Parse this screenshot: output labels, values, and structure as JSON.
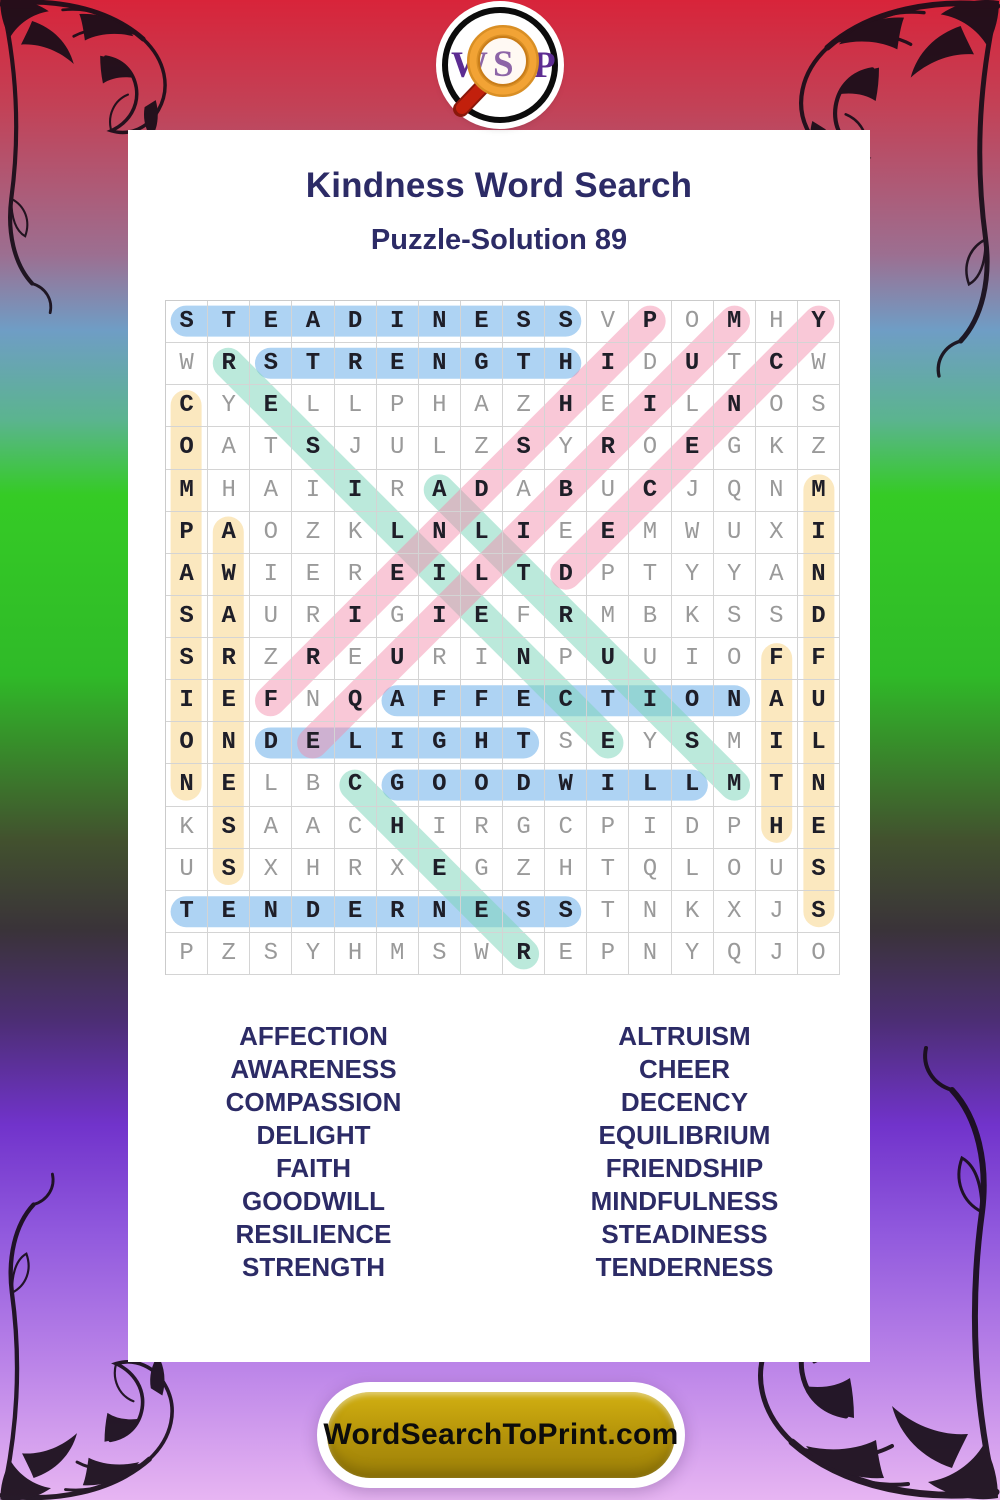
{
  "logo": {
    "letters": [
      "W",
      "S",
      "P"
    ]
  },
  "header": {
    "title": "Kindness Word Search",
    "subtitle": "Puzzle-Solution 89"
  },
  "grid": {
    "size": 16,
    "rows": [
      "STEADINESSVPOMHY",
      "WRSTRENGTHIDUTCW",
      "CYELLPHAZHEILNOS",
      "OATSJULZSYROEGKZ",
      "MHAIIRADABUCJQNM",
      "PAOZKLNLIEEMWUXI",
      "AWIEREILTDPTYYAN",
      "SAURIGIEFRMBKSSD",
      "SRZREURINPUUIOFF",
      "IEFNQAFFECTIONAU",
      "ONDELIGHTSEYSMIL",
      "NELBCGOODWILLMTN",
      "KSAACHIRGCPIDPHE",
      "USXHRXEGZHTQLOUS",
      "TENDERNESSTNKXJS",
      "PZSYHMSWREPNYQJO"
    ]
  },
  "solutions": [
    {
      "word": "STEADINESS",
      "r1": 1,
      "c1": 1,
      "r2": 1,
      "c2": 10,
      "color": "blue"
    },
    {
      "word": "STRENGTH",
      "r1": 2,
      "c1": 3,
      "r2": 2,
      "c2": 10,
      "color": "blue"
    },
    {
      "word": "AFFECTION",
      "r1": 10,
      "c1": 6,
      "r2": 10,
      "c2": 14,
      "color": "blue"
    },
    {
      "word": "DELIGHT",
      "r1": 11,
      "c1": 3,
      "r2": 11,
      "c2": 9,
      "color": "blue"
    },
    {
      "word": "GOODWILL",
      "r1": 12,
      "c1": 6,
      "r2": 12,
      "c2": 13,
      "color": "blue"
    },
    {
      "word": "TENDERNESS",
      "r1": 15,
      "c1": 1,
      "r2": 15,
      "c2": 10,
      "color": "blue"
    },
    {
      "word": "COMPASSION",
      "r1": 3,
      "c1": 1,
      "r2": 12,
      "c2": 1,
      "color": "yellow"
    },
    {
      "word": "AWARENESS",
      "r1": 6,
      "c1": 2,
      "r2": 14,
      "c2": 2,
      "color": "yellow"
    },
    {
      "word": "FAITH",
      "r1": 9,
      "c1": 15,
      "r2": 13,
      "c2": 15,
      "color": "yellow"
    },
    {
      "word": "MINDFULNESS",
      "r1": 5,
      "c1": 16,
      "r2": 15,
      "c2": 16,
      "color": "yellow"
    },
    {
      "word": "RESILIENCE",
      "r1": 2,
      "c1": 2,
      "r2": 11,
      "c2": 11,
      "color": "teal"
    },
    {
      "word": "ALTRUISM",
      "r1": 5,
      "c1": 7,
      "r2": 12,
      "c2": 14,
      "color": "teal"
    },
    {
      "word": "CHEER",
      "r1": 12,
      "c1": 5,
      "r2": 16,
      "c2": 9,
      "color": "teal"
    },
    {
      "word": "FRIENDSHIP",
      "r1": 10,
      "c1": 3,
      "r2": 1,
      "c2": 12,
      "color": "pink"
    },
    {
      "word": "EQUILIBRIUM",
      "r1": 11,
      "c1": 4,
      "r2": 1,
      "c2": 14,
      "color": "pink"
    },
    {
      "word": "DECENCY",
      "r1": 7,
      "c1": 10,
      "r2": 1,
      "c2": 16,
      "color": "pink"
    }
  ],
  "word_list": {
    "left": [
      "AFFECTION",
      "AWARENESS",
      "COMPASSION",
      "DELIGHT",
      "FAITH",
      "GOODWILL",
      "RESILIENCE",
      "STRENGTH"
    ],
    "right": [
      "ALTRUISM",
      "CHEER",
      "DECENCY",
      "EQUILIBRIUM",
      "FRIENDSHIP",
      "MINDFULNESS",
      "STEADINESS",
      "TENDERNESS"
    ]
  },
  "footer": {
    "site": "WordSearchToPrint.com"
  },
  "palette": {
    "band_blue": "rgba(108,174,233,0.55)",
    "band_pink": "rgba(242,138,170,0.47)",
    "band_teal": "rgba(124,212,186,0.52)",
    "band_yellow": "rgba(246,204,112,0.45)",
    "navy": "#2c2b66",
    "letter_hit": "#1e1e28",
    "letter_miss": "#9a9a9a",
    "gold_banner": "#b6950a",
    "logo_purple": "#5c2c92",
    "lens_orange": "#f2a335",
    "handle_red": "#c2200c"
  }
}
